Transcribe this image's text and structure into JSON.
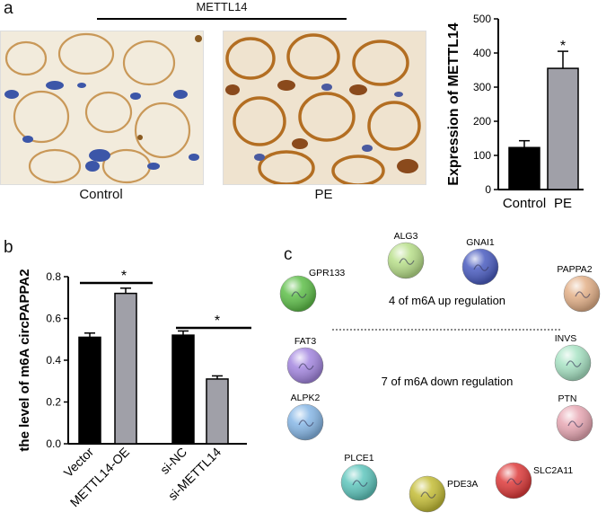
{
  "panel_a": {
    "letter": "a",
    "header": "METTL14",
    "image_labels": [
      "Control",
      "PE"
    ]
  },
  "panel_b": {
    "letter": "b"
  },
  "panel_c": {
    "letter": "c",
    "up_label": "4  of m6A up regulation",
    "down_label": "7 of m6A down regulation",
    "up_genes": [
      {
        "name": "GPR133",
        "color": "#5fbf4a"
      },
      {
        "name": "ALG3",
        "color": "#b8df8a"
      },
      {
        "name": "GNAI1",
        "color": "#4a5cc0"
      },
      {
        "name": "PAPPA2",
        "color": "#e3b088"
      }
    ],
    "down_genes": [
      {
        "name": "FAT3",
        "color": "#a487e0"
      },
      {
        "name": "INVS",
        "color": "#a8e3c4"
      },
      {
        "name": "ALPK2",
        "color": "#87b7e6"
      },
      {
        "name": "PTN",
        "color": "#e8a8b4"
      },
      {
        "name": "PLCE1",
        "color": "#5fc6bd"
      },
      {
        "name": "SLC2A11",
        "color": "#de3b3b"
      },
      {
        "name": "PDE3A",
        "color": "#c4bd37"
      }
    ]
  },
  "chart_data": [
    {
      "type": "bar",
      "categories": [
        "Control",
        "PE"
      ],
      "values": [
        123,
        355
      ],
      "errors": [
        20,
        50
      ],
      "colors": [
        "#000000",
        "#a0a0a8"
      ],
      "ylabel": "Expression of METTL14",
      "ylim": [
        0,
        500
      ],
      "yticks": [
        "0",
        "100",
        "200",
        "300",
        "400",
        "500"
      ],
      "significance": "*"
    },
    {
      "type": "bar",
      "categories": [
        "Vector",
        "METTL14-OE",
        "si-NC",
        "si-METTL14"
      ],
      "values": [
        0.51,
        0.72,
        0.52,
        0.31
      ],
      "errors": [
        0.02,
        0.025,
        0.02,
        0.015
      ],
      "colors": [
        "#000000",
        "#a0a0a8",
        "#000000",
        "#a0a0a8"
      ],
      "ylabel": "the level of  m6A circPAPPA2",
      "ylim": [
        0,
        0.8
      ],
      "yticks": [
        "0.0",
        "0.2",
        "0.4",
        "0.6",
        "0.8"
      ],
      "significance": "*"
    }
  ]
}
